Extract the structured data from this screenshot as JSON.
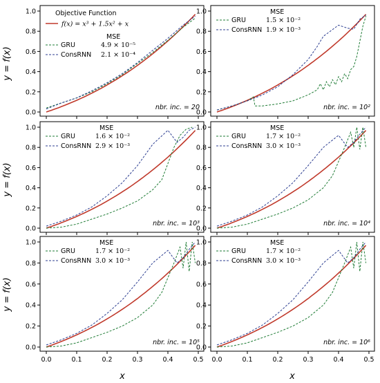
{
  "colors": {
    "func": "#c0392b",
    "gru": "#1e7b34",
    "cons": "#2c3e91"
  },
  "axes_text": {
    "xlabel": "x",
    "ylabel": "y = f(x)"
  },
  "chart_data": [
    {
      "type": "line",
      "title": "",
      "xlim": [
        0,
        0.5
      ],
      "ylim": [
        0,
        1
      ],
      "xticks": [
        "0.0",
        "0.1",
        "0.2",
        "0.3",
        "0.4",
        "0.5"
      ],
      "yticks": [
        "0.0",
        "0.2",
        "0.4",
        "0.6",
        "0.8",
        "1.0"
      ],
      "legend_func_label": "Objective Function",
      "legend_func_formula": "f(x) = x³ + 1.5x² + x",
      "mse_header": "MSE",
      "series": [
        {
          "name": "GRU",
          "mse": "4.9 × 10⁻⁵",
          "x": [
            0,
            0.05,
            0.1,
            0.15,
            0.2,
            0.25,
            0.3,
            0.35,
            0.4,
            0.45,
            0.49
          ],
          "y": [
            0.04,
            0.09,
            0.14,
            0.2,
            0.28,
            0.37,
            0.48,
            0.59,
            0.71,
            0.84,
            0.93
          ]
        },
        {
          "name": "ConsRNN",
          "mse": "2.1 × 10⁻⁴",
          "x": [
            0,
            0.05,
            0.1,
            0.15,
            0.2,
            0.25,
            0.3,
            0.35,
            0.4,
            0.45,
            0.49
          ],
          "y": [
            0.03,
            0.09,
            0.14,
            0.21,
            0.29,
            0.38,
            0.49,
            0.61,
            0.73,
            0.86,
            0.95
          ]
        }
      ],
      "annotation": "nbr. inc. = 20"
    },
    {
      "type": "line",
      "title": "",
      "xlim": [
        0,
        0.5
      ],
      "ylim": [
        0,
        1
      ],
      "xticks": [
        "0.0",
        "0.1",
        "0.2",
        "0.3",
        "0.4",
        "0.5"
      ],
      "yticks": [
        "0.0",
        "0.2",
        "0.4",
        "0.6",
        "0.8",
        "1.0"
      ],
      "mse_header": "MSE",
      "series": [
        {
          "name": "GRU",
          "mse": "1.5 × 10⁻²",
          "x": [
            0,
            0.05,
            0.1,
            0.12,
            0.125,
            0.15,
            0.2,
            0.25,
            0.3,
            0.33,
            0.34,
            0.35,
            0.36,
            0.37,
            0.38,
            0.39,
            0.4,
            0.41,
            0.42,
            0.43,
            0.44,
            0.45,
            0.46,
            0.47,
            0.48,
            0.49
          ],
          "y": [
            0.02,
            0.06,
            0.11,
            0.15,
            0.06,
            0.06,
            0.08,
            0.11,
            0.17,
            0.22,
            0.28,
            0.22,
            0.3,
            0.25,
            0.32,
            0.27,
            0.35,
            0.3,
            0.38,
            0.33,
            0.42,
            0.45,
            0.55,
            0.7,
            0.85,
            0.95
          ]
        },
        {
          "name": "ConsRNN",
          "mse": "1.9 × 10⁻³",
          "x": [
            0,
            0.05,
            0.1,
            0.15,
            0.2,
            0.25,
            0.3,
            0.33,
            0.35,
            0.4,
            0.43,
            0.45,
            0.47,
            0.49
          ],
          "y": [
            0.02,
            0.06,
            0.11,
            0.17,
            0.25,
            0.37,
            0.52,
            0.65,
            0.75,
            0.86,
            0.83,
            0.82,
            0.92,
            0.96
          ]
        }
      ],
      "annotation": "nbr. inc. = 10²"
    },
    {
      "type": "line",
      "title": "",
      "xlim": [
        0,
        0.5
      ],
      "ylim": [
        0,
        1
      ],
      "xticks": [
        "0.0",
        "0.1",
        "0.2",
        "0.3",
        "0.4",
        "0.5"
      ],
      "yticks": [
        "0.0",
        "0.2",
        "0.4",
        "0.6",
        "0.8",
        "1.0"
      ],
      "mse_header": "MSE",
      "series": [
        {
          "name": "GRU",
          "mse": "1.6 × 10⁻²",
          "x": [
            0,
            0.05,
            0.1,
            0.15,
            0.2,
            0.25,
            0.3,
            0.35,
            0.38,
            0.4,
            0.42,
            0.44,
            0.46,
            0.48
          ],
          "y": [
            0.0,
            0.01,
            0.04,
            0.09,
            0.14,
            0.2,
            0.27,
            0.38,
            0.48,
            0.64,
            0.8,
            0.92,
            0.98,
            1.0
          ]
        },
        {
          "name": "ConsRNN",
          "mse": "2.9 × 10⁻³",
          "x": [
            0,
            0.05,
            0.1,
            0.15,
            0.2,
            0.25,
            0.3,
            0.35,
            0.4,
            0.43,
            0.45,
            0.47,
            0.49
          ],
          "y": [
            0.02,
            0.07,
            0.13,
            0.21,
            0.32,
            0.45,
            0.62,
            0.83,
            0.97,
            0.85,
            0.9,
            0.97,
            1.0
          ]
        }
      ],
      "annotation": "nbr. inc. = 10³"
    },
    {
      "type": "line",
      "title": "",
      "xlim": [
        0,
        0.5
      ],
      "ylim": [
        0,
        1
      ],
      "xticks": [
        "0.0",
        "0.1",
        "0.2",
        "0.3",
        "0.4",
        "0.5"
      ],
      "yticks": [
        "0.0",
        "0.2",
        "0.4",
        "0.6",
        "0.8",
        "1.0"
      ],
      "mse_header": "MSE",
      "series": [
        {
          "name": "GRU",
          "mse": "1.7 × 10⁻²",
          "x": [
            0,
            0.05,
            0.1,
            0.15,
            0.2,
            0.25,
            0.3,
            0.35,
            0.38,
            0.4,
            0.42,
            0.44,
            0.45,
            0.46,
            0.47,
            0.48,
            0.49
          ],
          "y": [
            0.0,
            0.01,
            0.04,
            0.09,
            0.14,
            0.2,
            0.28,
            0.4,
            0.52,
            0.66,
            0.8,
            0.95,
            0.8,
            1.0,
            0.78,
            1.0,
            0.8
          ]
        },
        {
          "name": "ConsRNN",
          "mse": "3.0 × 10⁻³",
          "x": [
            0,
            0.05,
            0.1,
            0.15,
            0.2,
            0.25,
            0.3,
            0.35,
            0.4,
            0.43,
            0.45,
            0.47,
            0.49
          ],
          "y": [
            0.02,
            0.07,
            0.13,
            0.21,
            0.32,
            0.45,
            0.62,
            0.8,
            0.92,
            0.8,
            0.85,
            0.93,
            1.0
          ]
        }
      ],
      "annotation": "nbr. inc. = 10⁴"
    },
    {
      "type": "line",
      "title": "",
      "xlim": [
        0,
        0.5
      ],
      "ylim": [
        0,
        1
      ],
      "xticks": [
        "0.0",
        "0.1",
        "0.2",
        "0.3",
        "0.4",
        "0.5"
      ],
      "yticks": [
        "0.0",
        "0.2",
        "0.4",
        "0.6",
        "0.8",
        "1.0"
      ],
      "mse_header": "MSE",
      "series": [
        {
          "name": "GRU",
          "mse": "1.7 × 10⁻²",
          "x": [
            0,
            0.05,
            0.1,
            0.15,
            0.2,
            0.25,
            0.3,
            0.35,
            0.38,
            0.4,
            0.42,
            0.44,
            0.45,
            0.46,
            0.47,
            0.48,
            0.49
          ],
          "y": [
            0.0,
            0.01,
            0.04,
            0.09,
            0.14,
            0.2,
            0.28,
            0.4,
            0.52,
            0.66,
            0.8,
            0.95,
            0.75,
            1.0,
            0.72,
            1.0,
            0.8
          ]
        },
        {
          "name": "ConsRNN",
          "mse": "3.0 × 10⁻³",
          "x": [
            0,
            0.05,
            0.1,
            0.15,
            0.2,
            0.25,
            0.3,
            0.35,
            0.4,
            0.43,
            0.45,
            0.47,
            0.49
          ],
          "y": [
            0.02,
            0.07,
            0.13,
            0.21,
            0.32,
            0.45,
            0.62,
            0.8,
            0.92,
            0.8,
            0.85,
            0.93,
            1.0
          ]
        }
      ],
      "annotation": "nbr. inc. = 10⁵"
    },
    {
      "type": "line",
      "title": "",
      "xlim": [
        0,
        0.5
      ],
      "ylim": [
        0,
        1
      ],
      "xticks": [
        "0.0",
        "0.1",
        "0.2",
        "0.3",
        "0.4",
        "0.5"
      ],
      "yticks": [
        "0.0",
        "0.2",
        "0.4",
        "0.6",
        "0.8",
        "1.0"
      ],
      "mse_header": "MSE",
      "series": [
        {
          "name": "GRU",
          "mse": "1.7 × 10⁻²",
          "x": [
            0,
            0.05,
            0.1,
            0.15,
            0.2,
            0.25,
            0.3,
            0.35,
            0.38,
            0.4,
            0.42,
            0.44,
            0.45,
            0.46,
            0.47,
            0.48,
            0.49
          ],
          "y": [
            0.0,
            0.01,
            0.04,
            0.09,
            0.14,
            0.2,
            0.28,
            0.4,
            0.52,
            0.66,
            0.8,
            0.95,
            0.75,
            1.0,
            0.72,
            1.0,
            0.8
          ]
        },
        {
          "name": "ConsRNN",
          "mse": "3.0 × 10⁻³",
          "x": [
            0,
            0.05,
            0.1,
            0.15,
            0.2,
            0.25,
            0.3,
            0.35,
            0.4,
            0.43,
            0.45,
            0.47,
            0.49
          ],
          "y": [
            0.02,
            0.07,
            0.13,
            0.21,
            0.32,
            0.45,
            0.62,
            0.8,
            0.92,
            0.8,
            0.85,
            0.93,
            1.0
          ]
        }
      ],
      "annotation": "nbr. inc. = 10⁶"
    }
  ]
}
